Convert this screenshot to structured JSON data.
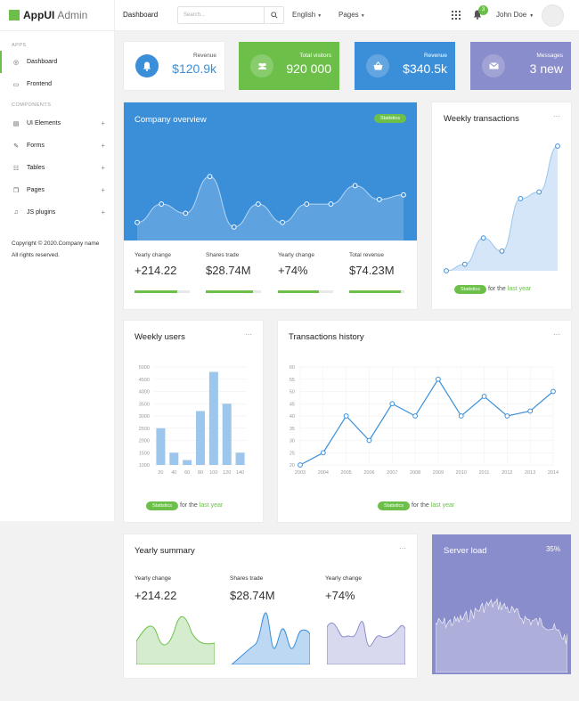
{
  "app": {
    "name_bold": "AppUI",
    "name_light": "Admin"
  },
  "sidebar": {
    "apps_heading": "APPS",
    "components_heading": "COMPONENTS",
    "items": [
      {
        "label": "Dashboard",
        "icon": "gauge-icon"
      },
      {
        "label": "Frontend",
        "icon": "monitor-icon"
      },
      {
        "label": "UI Elements",
        "icon": "doc-icon"
      },
      {
        "label": "Forms",
        "icon": "edit-icon"
      },
      {
        "label": "Tables",
        "icon": "table-icon"
      },
      {
        "label": "Pages",
        "icon": "pages-icon"
      },
      {
        "label": "JS plugins",
        "icon": "plugin-icon"
      }
    ],
    "copyright": "Copyright © 2020.Company name All rights reserved."
  },
  "topbar": {
    "title": "Dashboard",
    "search_placeholder": "Search...",
    "language": "English",
    "pages": "Pages",
    "notifications": "3",
    "user": "John Doe"
  },
  "stats": [
    {
      "label": "Revenue",
      "value": "$120.9k",
      "color": "#3b8fd9",
      "bg": "#ffffff",
      "icon": "bell-icon"
    },
    {
      "label": "Total visitors",
      "value": "920 000",
      "color": "#ffffff",
      "bg": "#6cc04a",
      "icon": "users-icon"
    },
    {
      "label": "Revenue",
      "value": "$340.5k",
      "color": "#ffffff",
      "bg": "#3b8fd9",
      "icon": "basket-icon"
    },
    {
      "label": "Messages",
      "value": "3 new",
      "color": "#ffffff",
      "bg": "#8a8dcb",
      "icon": "envelope-icon"
    }
  ],
  "overview": {
    "title": "Company overview",
    "badge": "Statistics",
    "kpis": [
      {
        "label": "Yearly change",
        "value": "+214.22",
        "progress": 0.78
      },
      {
        "label": "Shares trade",
        "value": "$28.74M",
        "progress": 0.85
      },
      {
        "label": "Yearly change",
        "value": "+74%",
        "progress": 0.74
      },
      {
        "label": "Total revenue",
        "value": "$74.23M",
        "progress": 0.94
      }
    ]
  },
  "weekly_transactions": {
    "title": "Weekly transactions",
    "badge": "Statistics",
    "for_text": "for the",
    "for_link": "last year"
  },
  "weekly_users": {
    "title": "Weekly users",
    "badge": "Statistics",
    "for_text": "for the",
    "for_link": "last year"
  },
  "transactions_history": {
    "title": "Transactions history",
    "badge": "Statistics",
    "for_text": "for the",
    "for_link": "last year"
  },
  "yearly_summary": {
    "title": "Yearly summary",
    "items": [
      {
        "label": "Yearly change",
        "value": "+214.22"
      },
      {
        "label": "Shares trade",
        "value": "$28.74M"
      },
      {
        "label": "Yearly change",
        "value": "+74%"
      }
    ]
  },
  "server_load": {
    "title": "Server load",
    "value": "35%"
  },
  "chart_data": [
    {
      "type": "area",
      "name": "company-overview",
      "values": [
        1,
        3,
        2,
        6,
        0.5,
        3,
        1,
        3,
        3,
        5,
        3.5,
        4
      ]
    },
    {
      "type": "area",
      "name": "weekly-transactions",
      "values": [
        0.5,
        1,
        3,
        2,
        6,
        6.5,
        10
      ]
    },
    {
      "type": "bar",
      "name": "weekly-users",
      "categories": [
        "20",
        "40",
        "60",
        "80",
        "100",
        "120",
        "140"
      ],
      "values": [
        2500,
        1500,
        1200,
        3200,
        4800,
        3500,
        1500
      ],
      "ylim": [
        1000,
        5000
      ],
      "yticks": [
        "5000",
        "4500",
        "4000",
        "3500",
        "3000",
        "2500",
        "2000",
        "1500",
        "1000"
      ]
    },
    {
      "type": "line",
      "name": "transactions-history",
      "x": [
        "2003",
        "2004",
        "2005",
        "2006",
        "2007",
        "2008",
        "2009",
        "2010",
        "2011",
        "2012",
        "2013",
        "2014"
      ],
      "values": [
        20,
        25,
        40,
        30,
        45,
        40,
        55,
        40,
        48,
        40,
        42,
        50
      ],
      "ylim": [
        20,
        60
      ],
      "yticks": [
        "60",
        "55",
        "50",
        "45",
        "40",
        "35",
        "30",
        "25",
        "20"
      ]
    }
  ]
}
